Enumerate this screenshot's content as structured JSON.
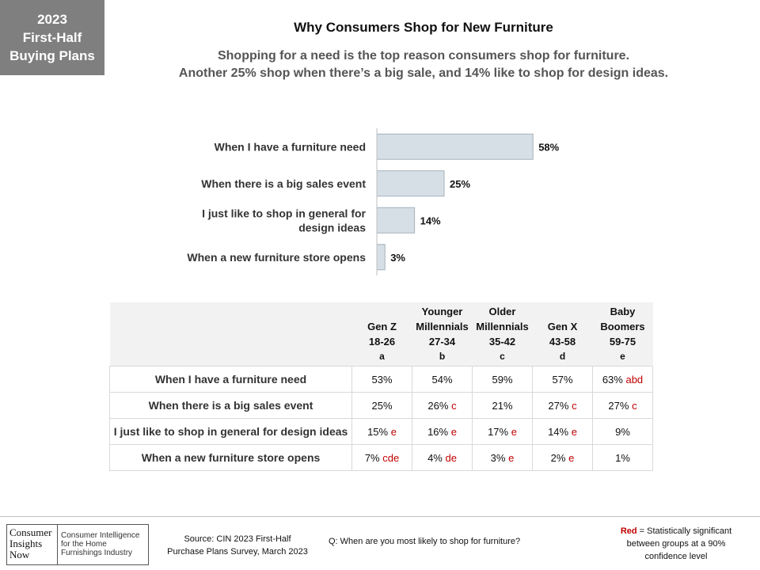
{
  "badge": {
    "line1": "2023",
    "line2": "First-Half",
    "line3": "Buying Plans"
  },
  "title": "Why Consumers  Shop for New Furniture",
  "subtitle": {
    "line1": "Shopping for a need is the top reason consumers shop for furniture.",
    "line2": "Another 25% shop when there’s a big sale, and 14% like to shop for design ideas."
  },
  "chart_data": {
    "type": "bar",
    "orientation": "horizontal",
    "categories": [
      [
        "When I have a furniture need"
      ],
      [
        "When there is a big sales event"
      ],
      [
        "I just like to shop in general for",
        "design ideas"
      ],
      [
        "When a new furniture store opens"
      ]
    ],
    "values": [
      58,
      25,
      14,
      3
    ],
    "value_labels": [
      "58%",
      "25%",
      "14%",
      "3%"
    ],
    "bar_color": "#d6dfe6",
    "bar_stroke": "#a6b1ba",
    "xlim": [
      0,
      100
    ]
  },
  "table": {
    "columns": [
      {
        "lines": [
          "Gen Z",
          "18-26",
          "a"
        ]
      },
      {
        "lines": [
          "Younger",
          "Millennials",
          "27-34",
          "b"
        ]
      },
      {
        "lines": [
          "Older",
          "Millennials",
          "35-42",
          "c"
        ]
      },
      {
        "lines": [
          "Gen X",
          "43-58",
          "d"
        ]
      },
      {
        "lines": [
          "Baby",
          "Boomers",
          "59-75",
          "e"
        ]
      }
    ],
    "rows": [
      {
        "label": "When I have a furniture need",
        "cells": [
          {
            "v": "53%",
            "s": ""
          },
          {
            "v": "54%",
            "s": ""
          },
          {
            "v": "59%",
            "s": ""
          },
          {
            "v": "57%",
            "s": ""
          },
          {
            "v": "63%",
            "s": "abd"
          }
        ]
      },
      {
        "label": "When there is a big sales event",
        "cells": [
          {
            "v": "25%",
            "s": ""
          },
          {
            "v": "26%",
            "s": "c"
          },
          {
            "v": "21%",
            "s": ""
          },
          {
            "v": "27%",
            "s": "c"
          },
          {
            "v": "27%",
            "s": "c"
          }
        ]
      },
      {
        "label": "I just like to shop in general for design ideas",
        "cells": [
          {
            "v": "15%",
            "s": "e"
          },
          {
            "v": "16%",
            "s": "e"
          },
          {
            "v": "17%",
            "s": "e"
          },
          {
            "v": "14%",
            "s": "e"
          },
          {
            "v": "9%",
            "s": ""
          }
        ]
      },
      {
        "label": "When a new furniture store opens",
        "cells": [
          {
            "v": "7%",
            "s": "cde"
          },
          {
            "v": "4%",
            "s": "de"
          },
          {
            "v": "3%",
            "s": "e"
          },
          {
            "v": "2%",
            "s": "e"
          },
          {
            "v": "1%",
            "s": ""
          }
        ]
      }
    ],
    "significance_color": "#c00000"
  },
  "footer": {
    "logo_left": [
      "Consumer",
      "Insights",
      "Now"
    ],
    "logo_right": [
      "Consumer Intelligence",
      "for the Home",
      "Furnishings Industry"
    ],
    "source_line1": "Source: CIN 2023 First-Half",
    "source_line2": "Purchase Plans Survey, March 2023",
    "question": "Q: When are you most likely to shop for furniture?",
    "note_red": "Red",
    "note_rest": " = Statistically significant",
    "note_line2": "between  groups at a 90%",
    "note_line3": "confidence level"
  }
}
